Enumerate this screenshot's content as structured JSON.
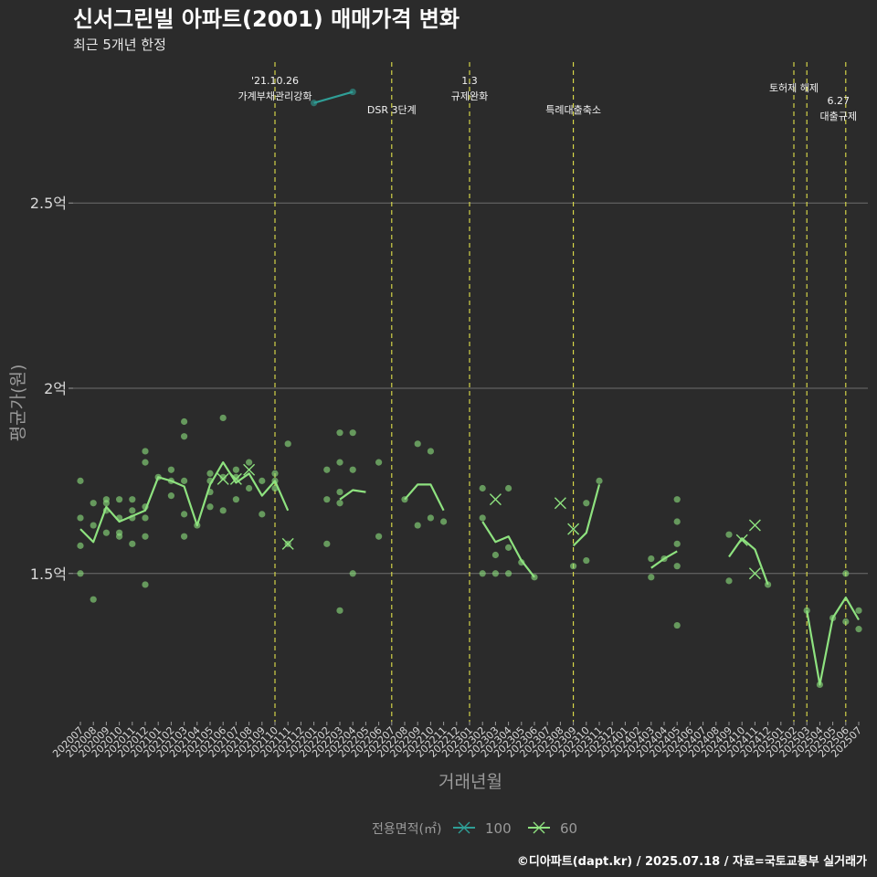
{
  "chart_data": {
    "type": "line",
    "title": "신서그린빌 아파트(2001) 매매가격 변화",
    "subtitle": "최근 5개년 한정",
    "xlabel": "거래년월",
    "ylabel": "평균가(원)",
    "ylim": [
      1.1,
      2.9
    ],
    "y_ticks": [
      {
        "value": 1.5,
        "label": "1.5억"
      },
      {
        "value": 2.0,
        "label": "2억"
      },
      {
        "value": 2.5,
        "label": "2.5억"
      }
    ],
    "categories": [
      "202007",
      "202008",
      "202009",
      "202010",
      "202011",
      "202012",
      "202101",
      "202102",
      "202103",
      "202104",
      "202105",
      "202106",
      "202107",
      "202108",
      "202109",
      "202110",
      "202111",
      "202112",
      "202201",
      "202202",
      "202203",
      "202204",
      "202205",
      "202206",
      "202207",
      "202208",
      "202209",
      "202210",
      "202211",
      "202212",
      "202301",
      "202302",
      "202303",
      "202304",
      "202305",
      "202306",
      "202307",
      "202308",
      "202309",
      "202310",
      "202311",
      "202312",
      "202401",
      "202402",
      "202403",
      "202404",
      "202405",
      "202406",
      "202407",
      "202408",
      "202409",
      "202410",
      "202411",
      "202412",
      "202501",
      "202502",
      "202503",
      "202504",
      "202505",
      "202506",
      "202507"
    ],
    "legend_title": "전용면적(㎡)",
    "legend_position": "bottom",
    "series": [
      {
        "name": "60",
        "color": "#8ee27f",
        "points": [
          [
            "202007",
            1.62
          ],
          [
            "202008",
            1.585
          ],
          [
            "202009",
            1.68
          ],
          [
            "202010",
            1.64
          ],
          [
            "202011",
            1.655
          ],
          [
            "202012",
            1.67
          ],
          [
            "202101",
            1.76
          ],
          [
            "202102",
            1.75
          ],
          [
            "202103",
            1.735
          ],
          [
            "202104",
            1.63
          ],
          [
            "202105",
            1.74
          ],
          [
            "202106",
            1.8
          ],
          [
            "202107",
            1.745
          ],
          [
            "202108",
            1.77
          ],
          [
            "202109",
            1.71
          ],
          [
            "202110",
            1.75
          ],
          [
            "202111",
            1.67
          ],
          null,
          null,
          [
            "202203",
            1.7
          ],
          [
            "202204",
            1.725
          ],
          [
            "202205",
            1.72
          ],
          null,
          [
            "202208",
            1.7
          ],
          [
            "202209",
            1.74
          ],
          [
            "202210",
            1.74
          ],
          [
            "202211",
            1.67
          ],
          null,
          [
            "202302",
            1.64
          ],
          [
            "202303",
            1.585
          ],
          [
            "202304",
            1.6
          ],
          [
            "202305",
            1.535
          ],
          [
            "202306",
            1.49
          ],
          null,
          [
            "202309",
            1.575
          ],
          [
            "202310",
            1.61
          ],
          [
            "202311",
            1.74
          ],
          null,
          [
            "202403",
            1.515
          ],
          [
            "202404",
            1.54
          ],
          [
            "202405",
            1.56
          ],
          null,
          [
            "202409",
            1.545
          ],
          [
            "202410",
            1.595
          ],
          [
            "202411",
            1.565
          ],
          [
            "202412",
            1.47
          ],
          null,
          [
            "202503",
            1.4
          ],
          [
            "202504",
            1.2
          ],
          [
            "202505",
            1.38
          ],
          [
            "202506",
            1.435
          ],
          [
            "202507",
            1.375
          ]
        ],
        "single_markers": [
          [
            "202106",
            1.755
          ],
          [
            "202107",
            1.755
          ],
          [
            "202108",
            1.78
          ],
          [
            "202111",
            1.58
          ],
          [
            "202303",
            1.7
          ],
          [
            "202308",
            1.69
          ],
          [
            "202309",
            1.62
          ],
          [
            "202410",
            1.59
          ],
          [
            "202411",
            1.63
          ],
          [
            "202411",
            1.5
          ]
        ],
        "scatter": [
          [
            "202007",
            1.75
          ],
          [
            "202007",
            1.65
          ],
          [
            "202007",
            1.575
          ],
          [
            "202007",
            1.5
          ],
          [
            "202008",
            1.69
          ],
          [
            "202008",
            1.63
          ],
          [
            "202008",
            1.43
          ],
          [
            "202009",
            1.7
          ],
          [
            "202009",
            1.69
          ],
          [
            "202009",
            1.67
          ],
          [
            "202009",
            1.61
          ],
          [
            "202010",
            1.7
          ],
          [
            "202010",
            1.65
          ],
          [
            "202010",
            1.61
          ],
          [
            "202010",
            1.6
          ],
          [
            "202011",
            1.7
          ],
          [
            "202011",
            1.67
          ],
          [
            "202011",
            1.65
          ],
          [
            "202011",
            1.58
          ],
          [
            "202012",
            1.83
          ],
          [
            "202012",
            1.8
          ],
          [
            "202012",
            1.68
          ],
          [
            "202012",
            1.65
          ],
          [
            "202012",
            1.6
          ],
          [
            "202012",
            1.47
          ],
          [
            "202101",
            1.76
          ],
          [
            "202102",
            1.78
          ],
          [
            "202102",
            1.75
          ],
          [
            "202102",
            1.71
          ],
          [
            "202103",
            1.91
          ],
          [
            "202103",
            1.87
          ],
          [
            "202103",
            1.75
          ],
          [
            "202103",
            1.66
          ],
          [
            "202103",
            1.6
          ],
          [
            "202104",
            1.63
          ],
          [
            "202105",
            1.77
          ],
          [
            "202105",
            1.75
          ],
          [
            "202105",
            1.72
          ],
          [
            "202105",
            1.68
          ],
          [
            "202106",
            1.92
          ],
          [
            "202106",
            1.76
          ],
          [
            "202106",
            1.67
          ],
          [
            "202107",
            1.78
          ],
          [
            "202107",
            1.76
          ],
          [
            "202107",
            1.7
          ],
          [
            "202108",
            1.8
          ],
          [
            "202108",
            1.73
          ],
          [
            "202109",
            1.75
          ],
          [
            "202109",
            1.66
          ],
          [
            "202110",
            1.77
          ],
          [
            "202110",
            1.75
          ],
          [
            "202110",
            1.73
          ],
          [
            "202111",
            1.85
          ],
          [
            "202111",
            1.58
          ],
          [
            "202202",
            1.78
          ],
          [
            "202202",
            1.7
          ],
          [
            "202202",
            1.58
          ],
          [
            "202203",
            1.88
          ],
          [
            "202203",
            1.8
          ],
          [
            "202203",
            1.72
          ],
          [
            "202203",
            1.69
          ],
          [
            "202203",
            1.4
          ],
          [
            "202204",
            1.88
          ],
          [
            "202204",
            1.78
          ],
          [
            "202204",
            1.5
          ],
          [
            "202206",
            1.8
          ],
          [
            "202206",
            1.6
          ],
          [
            "202208",
            1.7
          ],
          [
            "202209",
            1.85
          ],
          [
            "202209",
            1.63
          ],
          [
            "202210",
            1.83
          ],
          [
            "202210",
            1.65
          ],
          [
            "202211",
            1.64
          ],
          [
            "202302",
            1.73
          ],
          [
            "202302",
            1.65
          ],
          [
            "202302",
            1.5
          ],
          [
            "202303",
            1.55
          ],
          [
            "202303",
            1.5
          ],
          [
            "202304",
            1.73
          ],
          [
            "202304",
            1.57
          ],
          [
            "202304",
            1.5
          ],
          [
            "202305",
            1.53
          ],
          [
            "202306",
            1.49
          ],
          [
            "202309",
            1.52
          ],
          [
            "202310",
            1.69
          ],
          [
            "202310",
            1.535
          ],
          [
            "202311",
            1.75
          ],
          [
            "202403",
            1.54
          ],
          [
            "202403",
            1.49
          ],
          [
            "202404",
            1.54
          ],
          [
            "202405",
            1.7
          ],
          [
            "202405",
            1.64
          ],
          [
            "202405",
            1.58
          ],
          [
            "202405",
            1.52
          ],
          [
            "202405",
            1.36
          ],
          [
            "202409",
            1.605
          ],
          [
            "202409",
            1.48
          ],
          [
            "202412",
            1.47
          ],
          [
            "202503",
            1.4
          ],
          [
            "202504",
            1.2
          ],
          [
            "202505",
            1.38
          ],
          [
            "202506",
            1.5
          ],
          [
            "202506",
            1.37
          ],
          [
            "202507",
            1.4
          ],
          [
            "202507",
            1.35
          ]
        ]
      },
      {
        "name": "100",
        "color": "#2f9e96",
        "points": [
          [
            "202201",
            2.77
          ],
          [
            "202204",
            2.8
          ]
        ],
        "single_markers": [],
        "scatter": [
          [
            "202201",
            2.77
          ],
          [
            "202204",
            2.8
          ]
        ]
      }
    ],
    "events": [
      {
        "month": "202110",
        "lines": [
          "'21.10.26",
          "가계부채관리강화"
        ]
      },
      {
        "month": "202207",
        "lines": [
          "DSR 3단계"
        ]
      },
      {
        "month": "202301",
        "lines": [
          "1.3",
          "규제완화"
        ]
      },
      {
        "month": "202309",
        "lines": [
          "특례대출축소"
        ]
      },
      {
        "month": "202502",
        "lines": [
          "토허제 해제"
        ]
      },
      {
        "month": "202503",
        "lines": [
          ""
        ]
      },
      {
        "month": "202506",
        "lines": [
          "6.27",
          "대출규제"
        ]
      }
    ]
  },
  "caption": "©디아파트(dapt.kr) / 2025.07.18 / 자료=국토교통부 실거래가",
  "colors": {
    "background": "#2b2b2b",
    "grid": "#6e6e6e",
    "event_line": "#e2e24a",
    "text": "#ffffff",
    "axis_text": "#d8d8d8",
    "muted_text": "#9a9a9a"
  }
}
